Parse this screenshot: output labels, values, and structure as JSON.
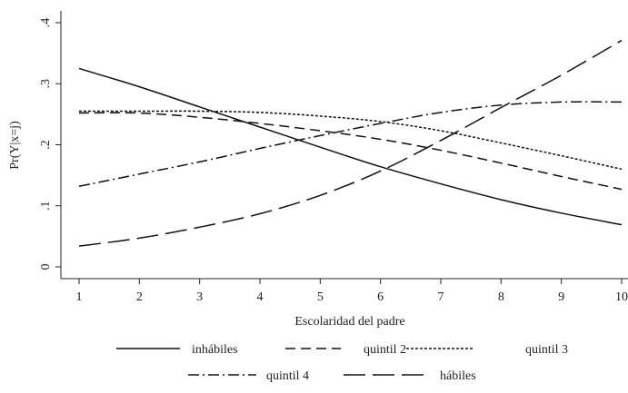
{
  "chart_data": {
    "type": "line",
    "title": "",
    "xlabel": "Escolaridad del padre",
    "ylabel": "Pr(Y|x=j)",
    "xlim": [
      1,
      10
    ],
    "ylim": [
      0,
      0.4
    ],
    "x_ticks": [
      1,
      2,
      3,
      4,
      5,
      6,
      7,
      8,
      9,
      10
    ],
    "x_tick_labels": [
      "1",
      "2",
      "3",
      "4",
      "5",
      "6",
      "7",
      "8",
      "9",
      "10"
    ],
    "y_ticks": [
      0,
      0.1,
      0.2,
      0.3,
      0.4
    ],
    "y_tick_labels": [
      "0",
      ".1",
      ".2",
      ".3",
      ".4"
    ],
    "grid": false,
    "legend_position": "bottom",
    "x": [
      1,
      2,
      3,
      4,
      5,
      6,
      7,
      8,
      9,
      10
    ],
    "series": [
      {
        "name": "inhábiles",
        "dash": "solid",
        "values": [
          0.325,
          0.295,
          0.262,
          0.229,
          0.196,
          0.164,
          0.136,
          0.11,
          0.088,
          0.069
        ]
      },
      {
        "name": "quintil 2",
        "dash": "dashed",
        "values": [
          0.252,
          0.252,
          0.245,
          0.235,
          0.223,
          0.209,
          0.191,
          0.17,
          0.148,
          0.127
        ]
      },
      {
        "name": "quintil 3",
        "dash": "dotted",
        "values": [
          0.255,
          0.255,
          0.255,
          0.253,
          0.247,
          0.238,
          0.223,
          0.203,
          0.182,
          0.16
        ]
      },
      {
        "name": "quintil 4",
        "dash": "dashdot",
        "values": [
          0.132,
          0.152,
          0.172,
          0.194,
          0.215,
          0.235,
          0.253,
          0.265,
          0.27,
          0.27
        ]
      },
      {
        "name": "hábiles",
        "dash": "longdash",
        "values": [
          0.034,
          0.047,
          0.065,
          0.087,
          0.117,
          0.157,
          0.207,
          0.261,
          0.314,
          0.371
        ]
      }
    ]
  }
}
